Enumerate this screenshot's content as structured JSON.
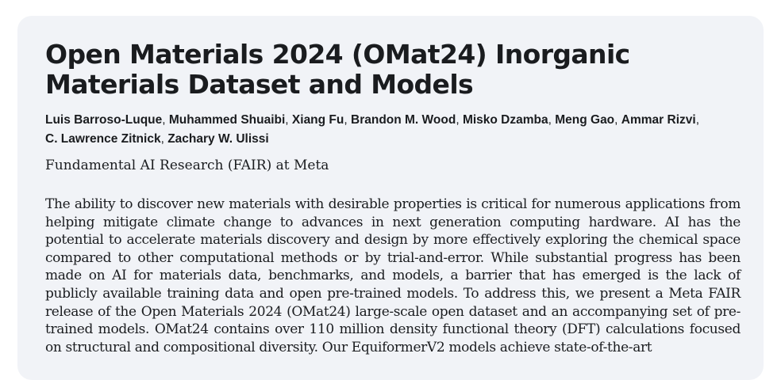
{
  "paper": {
    "title": "Open Materials 2024 (OMat24) Inorganic Materials Dataset and Models",
    "authors": [
      "Luis Barroso-Luque",
      "Muhammed Shuaibi",
      "Xiang Fu",
      "Brandon M. Wood",
      "Misko Dzamba",
      "Meng Gao",
      "Ammar Rizvi",
      "C. Lawrence Zitnick",
      "Zachary W. Ulissi"
    ],
    "affiliation": "Fundamental AI Research (FAIR) at Meta",
    "abstract": "The ability to discover new materials with desirable properties is critical for numerous applications from helping mitigate climate change to advances in next generation computing hardware. AI has the potential to accelerate materials discovery and design by more effectively exploring the chemical space compared to other computational methods or by trial-and-error. While substantial progress has been made on AI for materials data, benchmarks, and models, a barrier that has emerged is the lack of publicly available training data and open pre-trained models. To address this, we present a Meta FAIR release of the Open Materials 2024 (OMat24) large-scale open dataset and an accompanying set of pre-trained models. OMat24 contains over 110 million density functional theory (DFT) calculations focused on structural and compositional diversity. Our EquiformerV2 models achieve state-of-the-art"
  }
}
